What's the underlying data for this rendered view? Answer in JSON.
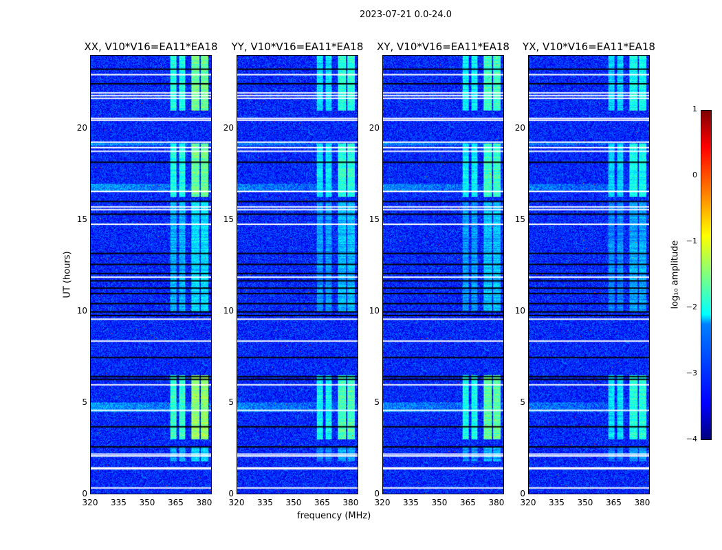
{
  "chart_data": {
    "type": "heatmap",
    "title": "2023-07-21 0.0-24.0",
    "xlabel": "frequency (MHz)",
    "ylabel": "UT (hours)",
    "xlim": [
      320,
      384
    ],
    "ylim": [
      0,
      24
    ],
    "xticks": [
      "320",
      "335",
      "350",
      "365",
      "380"
    ],
    "xtick_values": [
      320,
      335,
      350,
      365,
      380
    ],
    "yticks": [
      "0",
      "5",
      "10",
      "15",
      "20"
    ],
    "ytick_values": [
      0,
      5,
      10,
      15,
      20
    ],
    "panels": [
      {
        "title": "XX, V10*V16=EA11*EA18",
        "strength": 1.0
      },
      {
        "title": "YY, V10*V16=EA11*EA18",
        "strength": 0.8
      },
      {
        "title": "XY, V10*V16=EA11*EA18",
        "strength": 0.85
      },
      {
        "title": "YX, V10*V16=EA11*EA18",
        "strength": 0.7
      }
    ],
    "colorbar": {
      "label": "log₁₀ amplitude",
      "range": [
        -4,
        1
      ],
      "ticks": [
        "1",
        "0",
        "−1",
        "−2",
        "−3",
        "−4"
      ],
      "tick_values": [
        1,
        0,
        -1,
        -2,
        -3,
        -4
      ],
      "colormap": "jet"
    },
    "background_level": -3.2,
    "rfi_bands_mhz": [
      [
        362,
        365.5
      ],
      [
        367,
        370
      ],
      [
        373.5,
        377.5
      ],
      [
        378.5,
        382.5
      ]
    ],
    "rfi_active_hours": [
      [
        1.8,
        2.6,
        -2.4
      ],
      [
        3.0,
        6.5,
        -1.4
      ],
      [
        10.0,
        16.0,
        -2.3
      ],
      [
        16.3,
        19.2,
        -1.6
      ],
      [
        21.0,
        24.0,
        -1.6
      ]
    ],
    "flagged_white_hours": [
      0.35,
      1.4,
      1.45,
      2.1,
      2.2,
      4.6,
      6.0,
      8.4,
      9.6,
      11.9,
      14.8,
      15.6,
      15.75,
      16.6,
      18.8,
      19.0,
      19.3,
      20.5,
      20.6,
      21.7,
      21.85,
      22.0,
      23.0
    ],
    "flagged_black_hours": [
      2.6,
      3.7,
      6.3,
      6.45,
      7.5,
      9.8,
      10.0,
      10.45,
      11.0,
      11.3,
      11.7,
      12.1,
      12.6,
      13.2,
      15.35,
      16.05,
      18.2,
      22.5,
      23.3
    ],
    "enhanced_background_hours": [
      [
        4.5,
        5.0
      ],
      [
        16.6,
        17.0
      ],
      [
        19.1,
        19.3
      ]
    ]
  }
}
